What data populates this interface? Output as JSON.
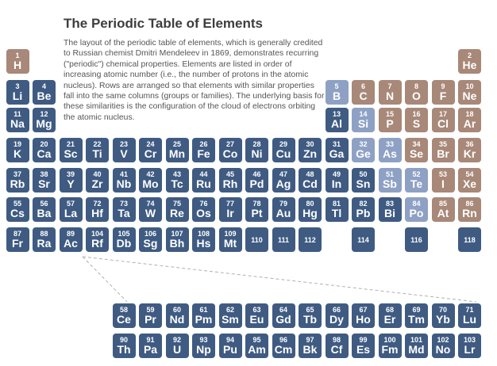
{
  "title": "The Periodic Table of Elements",
  "intro": "The layout of the periodic table of elements, which is generally credited to Russian chemist Dmitri Mendeleev in 1869, demonstrates recurring (\"periodic\") chemical properties. Elements are listed in order of increasing atomic number (i.e., the number of protons in the atomic nucleus). Rows are arranged so that elements with similar properties fall into the same columns (groups or families). The underlying basis for these similarities is the configuration of the cloud of electrons orbiting the atomic nucleus.",
  "colors": {
    "main": "#3f5b82",
    "nonmetal": "#a88878",
    "metalloid": "#8ea1c4",
    "dashed_line": "#b0b0b0"
  },
  "elements": [
    {
      "n": "1",
      "s": "H",
      "c": "nonmetal",
      "row": 1,
      "col": 1
    },
    {
      "n": "2",
      "s": "He",
      "c": "nonmetal",
      "row": 1,
      "col": 18
    },
    {
      "n": "3",
      "s": "Li",
      "c": "main",
      "row": 2,
      "col": 1
    },
    {
      "n": "4",
      "s": "Be",
      "c": "main",
      "row": 2,
      "col": 2
    },
    {
      "n": "5",
      "s": "B",
      "c": "metalloid",
      "row": 2,
      "col": 13
    },
    {
      "n": "6",
      "s": "C",
      "c": "nonmetal",
      "row": 2,
      "col": 14
    },
    {
      "n": "7",
      "s": "N",
      "c": "nonmetal",
      "row": 2,
      "col": 15
    },
    {
      "n": "8",
      "s": "O",
      "c": "nonmetal",
      "row": 2,
      "col": 16
    },
    {
      "n": "9",
      "s": "F",
      "c": "nonmetal",
      "row": 2,
      "col": 17
    },
    {
      "n": "10",
      "s": "Ne",
      "c": "nonmetal",
      "row": 2,
      "col": 18
    },
    {
      "n": "11",
      "s": "Na",
      "c": "main",
      "row": 3,
      "col": 1
    },
    {
      "n": "12",
      "s": "Mg",
      "c": "main",
      "row": 3,
      "col": 2
    },
    {
      "n": "13",
      "s": "Al",
      "c": "main",
      "row": 3,
      "col": 13
    },
    {
      "n": "14",
      "s": "Si",
      "c": "metalloid",
      "row": 3,
      "col": 14
    },
    {
      "n": "15",
      "s": "P",
      "c": "nonmetal",
      "row": 3,
      "col": 15
    },
    {
      "n": "16",
      "s": "S",
      "c": "nonmetal",
      "row": 3,
      "col": 16
    },
    {
      "n": "17",
      "s": "Cl",
      "c": "nonmetal",
      "row": 3,
      "col": 17
    },
    {
      "n": "18",
      "s": "Ar",
      "c": "nonmetal",
      "row": 3,
      "col": 18
    },
    {
      "n": "19",
      "s": "K",
      "c": "main",
      "row": 4,
      "col": 1
    },
    {
      "n": "20",
      "s": "Ca",
      "c": "main",
      "row": 4,
      "col": 2
    },
    {
      "n": "21",
      "s": "Sc",
      "c": "main",
      "row": 4,
      "col": 3
    },
    {
      "n": "22",
      "s": "Ti",
      "c": "main",
      "row": 4,
      "col": 4
    },
    {
      "n": "23",
      "s": "V",
      "c": "main",
      "row": 4,
      "col": 5
    },
    {
      "n": "24",
      "s": "Cr",
      "c": "main",
      "row": 4,
      "col": 6
    },
    {
      "n": "25",
      "s": "Mn",
      "c": "main",
      "row": 4,
      "col": 7
    },
    {
      "n": "26",
      "s": "Fe",
      "c": "main",
      "row": 4,
      "col": 8
    },
    {
      "n": "27",
      "s": "Co",
      "c": "main",
      "row": 4,
      "col": 9
    },
    {
      "n": "28",
      "s": "Ni",
      "c": "main",
      "row": 4,
      "col": 10
    },
    {
      "n": "29",
      "s": "Cu",
      "c": "main",
      "row": 4,
      "col": 11
    },
    {
      "n": "30",
      "s": "Zn",
      "c": "main",
      "row": 4,
      "col": 12
    },
    {
      "n": "31",
      "s": "Ga",
      "c": "main",
      "row": 4,
      "col": 13
    },
    {
      "n": "32",
      "s": "Ge",
      "c": "metalloid",
      "row": 4,
      "col": 14
    },
    {
      "n": "33",
      "s": "As",
      "c": "metalloid",
      "row": 4,
      "col": 15
    },
    {
      "n": "34",
      "s": "Se",
      "c": "nonmetal",
      "row": 4,
      "col": 16
    },
    {
      "n": "35",
      "s": "Br",
      "c": "nonmetal",
      "row": 4,
      "col": 17
    },
    {
      "n": "36",
      "s": "Kr",
      "c": "nonmetal",
      "row": 4,
      "col": 18
    },
    {
      "n": "37",
      "s": "Rb",
      "c": "main",
      "row": 5,
      "col": 1
    },
    {
      "n": "38",
      "s": "Sr",
      "c": "main",
      "row": 5,
      "col": 2
    },
    {
      "n": "39",
      "s": "Y",
      "c": "main",
      "row": 5,
      "col": 3
    },
    {
      "n": "40",
      "s": "Zr",
      "c": "main",
      "row": 5,
      "col": 4
    },
    {
      "n": "41",
      "s": "Nb",
      "c": "main",
      "row": 5,
      "col": 5
    },
    {
      "n": "42",
      "s": "Mo",
      "c": "main",
      "row": 5,
      "col": 6
    },
    {
      "n": "43",
      "s": "Tc",
      "c": "main",
      "row": 5,
      "col": 7
    },
    {
      "n": "44",
      "s": "Ru",
      "c": "main",
      "row": 5,
      "col": 8
    },
    {
      "n": "45",
      "s": "Rh",
      "c": "main",
      "row": 5,
      "col": 9
    },
    {
      "n": "46",
      "s": "Pd",
      "c": "main",
      "row": 5,
      "col": 10
    },
    {
      "n": "47",
      "s": "Ag",
      "c": "main",
      "row": 5,
      "col": 11
    },
    {
      "n": "48",
      "s": "Cd",
      "c": "main",
      "row": 5,
      "col": 12
    },
    {
      "n": "49",
      "s": "In",
      "c": "main",
      "row": 5,
      "col": 13
    },
    {
      "n": "50",
      "s": "Sn",
      "c": "main",
      "row": 5,
      "col": 14
    },
    {
      "n": "51",
      "s": "Sb",
      "c": "metalloid",
      "row": 5,
      "col": 15
    },
    {
      "n": "52",
      "s": "Te",
      "c": "metalloid",
      "row": 5,
      "col": 16
    },
    {
      "n": "53",
      "s": "I",
      "c": "nonmetal",
      "row": 5,
      "col": 17
    },
    {
      "n": "54",
      "s": "Xe",
      "c": "nonmetal",
      "row": 5,
      "col": 18
    },
    {
      "n": "55",
      "s": "Cs",
      "c": "main",
      "row": 6,
      "col": 1
    },
    {
      "n": "56",
      "s": "Ba",
      "c": "main",
      "row": 6,
      "col": 2
    },
    {
      "n": "57",
      "s": "La",
      "c": "main",
      "row": 6,
      "col": 3
    },
    {
      "n": "72",
      "s": "Hf",
      "c": "main",
      "row": 6,
      "col": 4
    },
    {
      "n": "73",
      "s": "Ta",
      "c": "main",
      "row": 6,
      "col": 5
    },
    {
      "n": "74",
      "s": "W",
      "c": "main",
      "row": 6,
      "col": 6
    },
    {
      "n": "75",
      "s": "Re",
      "c": "main",
      "row": 6,
      "col": 7
    },
    {
      "n": "76",
      "s": "Os",
      "c": "main",
      "row": 6,
      "col": 8
    },
    {
      "n": "77",
      "s": "Ir",
      "c": "main",
      "row": 6,
      "col": 9
    },
    {
      "n": "78",
      "s": "Pt",
      "c": "main",
      "row": 6,
      "col": 10
    },
    {
      "n": "79",
      "s": "Au",
      "c": "main",
      "row": 6,
      "col": 11
    },
    {
      "n": "80",
      "s": "Hg",
      "c": "main",
      "row": 6,
      "col": 12
    },
    {
      "n": "81",
      "s": "Tl",
      "c": "main",
      "row": 6,
      "col": 13
    },
    {
      "n": "82",
      "s": "Pb",
      "c": "main",
      "row": 6,
      "col": 14
    },
    {
      "n": "83",
      "s": "Bi",
      "c": "main",
      "row": 6,
      "col": 15
    },
    {
      "n": "84",
      "s": "Po",
      "c": "metalloid",
      "row": 6,
      "col": 16
    },
    {
      "n": "85",
      "s": "At",
      "c": "nonmetal",
      "row": 6,
      "col": 17
    },
    {
      "n": "86",
      "s": "Rn",
      "c": "nonmetal",
      "row": 6,
      "col": 18
    },
    {
      "n": "87",
      "s": "Fr",
      "c": "main",
      "row": 7,
      "col": 1
    },
    {
      "n": "88",
      "s": "Ra",
      "c": "main",
      "row": 7,
      "col": 2
    },
    {
      "n": "89",
      "s": "Ac",
      "c": "main",
      "row": 7,
      "col": 3
    },
    {
      "n": "104",
      "s": "Rf",
      "c": "main",
      "row": 7,
      "col": 4
    },
    {
      "n": "105",
      "s": "Db",
      "c": "main",
      "row": 7,
      "col": 5
    },
    {
      "n": "106",
      "s": "Sg",
      "c": "main",
      "row": 7,
      "col": 6
    },
    {
      "n": "107",
      "s": "Bh",
      "c": "main",
      "row": 7,
      "col": 7
    },
    {
      "n": "108",
      "s": "Hs",
      "c": "main",
      "row": 7,
      "col": 8
    },
    {
      "n": "109",
      "s": "Mt",
      "c": "main",
      "row": 7,
      "col": 9
    },
    {
      "n": "110",
      "s": "",
      "c": "main",
      "row": 7,
      "col": 10
    },
    {
      "n": "111",
      "s": "",
      "c": "main",
      "row": 7,
      "col": 11
    },
    {
      "n": "112",
      "s": "",
      "c": "main",
      "row": 7,
      "col": 12
    },
    {
      "n": "114",
      "s": "",
      "c": "main",
      "row": 7,
      "col": 14
    },
    {
      "n": "116",
      "s": "",
      "c": "main",
      "row": 7,
      "col": 16
    },
    {
      "n": "118",
      "s": "",
      "c": "main",
      "row": 7,
      "col": 18
    },
    {
      "n": "58",
      "s": "Ce",
      "c": "main",
      "row": 9,
      "col": 5
    },
    {
      "n": "59",
      "s": "Pr",
      "c": "main",
      "row": 9,
      "col": 6
    },
    {
      "n": "60",
      "s": "Nd",
      "c": "main",
      "row": 9,
      "col": 7
    },
    {
      "n": "61",
      "s": "Pm",
      "c": "main",
      "row": 9,
      "col": 8
    },
    {
      "n": "62",
      "s": "Sm",
      "c": "main",
      "row": 9,
      "col": 9
    },
    {
      "n": "63",
      "s": "Eu",
      "c": "main",
      "row": 9,
      "col": 10
    },
    {
      "n": "64",
      "s": "Gd",
      "c": "main",
      "row": 9,
      "col": 11
    },
    {
      "n": "65",
      "s": "Tb",
      "c": "main",
      "row": 9,
      "col": 12
    },
    {
      "n": "66",
      "s": "Dy",
      "c": "main",
      "row": 9,
      "col": 13
    },
    {
      "n": "67",
      "s": "Ho",
      "c": "main",
      "row": 9,
      "col": 14
    },
    {
      "n": "68",
      "s": "Er",
      "c": "main",
      "row": 9,
      "col": 15
    },
    {
      "n": "69",
      "s": "Tm",
      "c": "main",
      "row": 9,
      "col": 16
    },
    {
      "n": "70",
      "s": "Yb",
      "c": "main",
      "row": 9,
      "col": 17
    },
    {
      "n": "71",
      "s": "Lu",
      "c": "main",
      "row": 9,
      "col": 18
    },
    {
      "n": "90",
      "s": "Th",
      "c": "main",
      "row": 10,
      "col": 5
    },
    {
      "n": "91",
      "s": "Pa",
      "c": "main",
      "row": 10,
      "col": 6
    },
    {
      "n": "92",
      "s": "U",
      "c": "main",
      "row": 10,
      "col": 7
    },
    {
      "n": "93",
      "s": "Np",
      "c": "main",
      "row": 10,
      "col": 8
    },
    {
      "n": "94",
      "s": "Pu",
      "c": "main",
      "row": 10,
      "col": 9
    },
    {
      "n": "95",
      "s": "Am",
      "c": "main",
      "row": 10,
      "col": 10
    },
    {
      "n": "96",
      "s": "Cm",
      "c": "main",
      "row": 10,
      "col": 11
    },
    {
      "n": "97",
      "s": "Bk",
      "c": "main",
      "row": 10,
      "col": 12
    },
    {
      "n": "98",
      "s": "Cf",
      "c": "main",
      "row": 10,
      "col": 13
    },
    {
      "n": "99",
      "s": "Es",
      "c": "main",
      "row": 10,
      "col": 14
    },
    {
      "n": "100",
      "s": "Fm",
      "c": "main",
      "row": 10,
      "col": 15
    },
    {
      "n": "101",
      "s": "Md",
      "c": "main",
      "row": 10,
      "col": 16
    },
    {
      "n": "102",
      "s": "No",
      "c": "main",
      "row": 10,
      "col": 17
    },
    {
      "n": "103",
      "s": "Lr",
      "c": "main",
      "row": 10,
      "col": 18
    }
  ]
}
